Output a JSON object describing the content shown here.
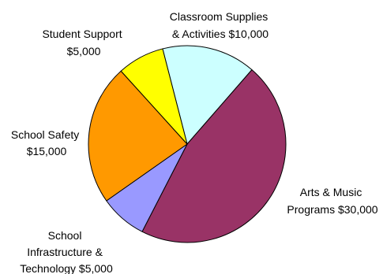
{
  "chart_data": {
    "type": "pie",
    "title": "",
    "slices": [
      {
        "line1": "Classroom Supplies",
        "line2": "& Activities $10,000",
        "line3": "",
        "value": 10000,
        "color": "#CCFFFF"
      },
      {
        "line1": "Arts & Music",
        "line2": "Programs $30,000",
        "line3": "",
        "value": 30000,
        "color": "#993366"
      },
      {
        "line1": "School",
        "line2": "Infrastructure &",
        "line3": "Technology $5,000",
        "value": 5000,
        "color": "#9999FF"
      },
      {
        "line1": "School Safety",
        "line2": "$15,000",
        "line3": "",
        "value": 15000,
        "color": "#FF9900"
      },
      {
        "line1": "Student Support",
        "line2": "$5,000",
        "line3": "",
        "value": 5000,
        "color": "#FFFF00"
      }
    ]
  }
}
